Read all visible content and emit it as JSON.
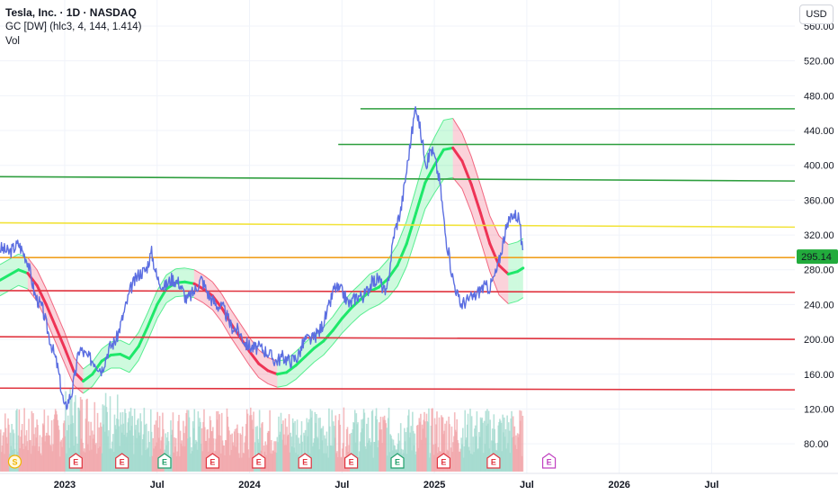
{
  "legend": {
    "title": "Tesla, Inc. · 1D · NASDAQ",
    "indicator": "GC [DW] (hlc3, 4, 144, 1.414)",
    "volume": "Vol"
  },
  "currency_button": "USD",
  "colors": {
    "price": "#5b6ee1",
    "price_top": "#7b4fd6",
    "green_level": "#2e9e3e",
    "yellow_level": "#f2e33a",
    "orange_level": "#f0a020",
    "red_level": "#e0333e",
    "band_green": "#1ee86a",
    "band_red": "#ee3355",
    "vol_up": "#9fd8cc",
    "vol_down": "#f0a4a8",
    "price_label_bg": "#22ab3c"
  },
  "chart_data": {
    "type": "line",
    "y_axis": {
      "ticks": [
        "560.00",
        "520.00",
        "480.00",
        "440.00",
        "400.00",
        "360.00",
        "320.00",
        "280.00",
        "240.00",
        "200.00",
        "160.00",
        "120.00",
        "80.00"
      ],
      "range": [
        46,
        590
      ]
    },
    "x_axis": {
      "ticks": [
        {
          "label": "2023",
          "t": 0.0
        },
        {
          "label": "Jul",
          "t": 0.5
        },
        {
          "label": "2024",
          "t": 1.0
        },
        {
          "label": "Jul",
          "t": 1.5
        },
        {
          "label": "2025",
          "t": 2.0
        },
        {
          "label": "Jul",
          "t": 2.5
        },
        {
          "label": "2026",
          "t": 3.0
        },
        {
          "label": "Jul",
          "t": 3.5
        }
      ],
      "range": [
        -0.35,
        3.95
      ]
    },
    "current_price": "295.14",
    "current_value": 295.14,
    "horizontal_levels": [
      {
        "value": 465,
        "start": 1.6,
        "color": "green"
      },
      {
        "value": 424,
        "start": 1.48,
        "color": "green"
      },
      {
        "value": 387,
        "start": -0.35,
        "end_value": 382,
        "color": "green"
      },
      {
        "value": 334,
        "start": -0.35,
        "end_value": 329,
        "color": "yellow"
      },
      {
        "value": 294,
        "start": -0.35,
        "color": "orange"
      },
      {
        "value": 256,
        "start": -0.35,
        "end_value": 254,
        "color": "red"
      },
      {
        "value": 203,
        "start": -0.35,
        "end_value": 200,
        "color": "red"
      },
      {
        "value": 144,
        "start": -0.35,
        "end_value": 142,
        "color": "red"
      }
    ],
    "price_series": {
      "t": [
        -0.35,
        -0.3,
        -0.25,
        -0.2,
        -0.16,
        -0.12,
        -0.08,
        -0.04,
        0.0,
        0.04,
        0.08,
        0.12,
        0.16,
        0.2,
        0.24,
        0.28,
        0.32,
        0.36,
        0.4,
        0.44,
        0.47,
        0.5,
        0.54,
        0.58,
        0.62,
        0.66,
        0.7,
        0.74,
        0.78,
        0.82,
        0.86,
        0.9,
        0.94,
        0.98,
        1.02,
        1.06,
        1.1,
        1.14,
        1.18,
        1.22,
        1.26,
        1.3,
        1.34,
        1.38,
        1.42,
        1.46,
        1.5,
        1.54,
        1.58,
        1.62,
        1.66,
        1.7,
        1.74,
        1.78,
        1.82,
        1.86,
        1.9,
        1.94,
        1.96,
        1.98,
        2.0,
        2.03,
        2.06,
        2.1,
        2.14,
        2.18,
        2.22,
        2.26,
        2.3,
        2.34,
        2.38,
        2.42,
        2.46,
        2.48
      ],
      "values": [
        305,
        300,
        310,
        290,
        250,
        235,
        200,
        170,
        120,
        140,
        190,
        180,
        175,
        165,
        190,
        200,
        230,
        260,
        275,
        280,
        300,
        270,
        260,
        270,
        265,
        245,
        255,
        270,
        250,
        240,
        235,
        215,
        210,
        195,
        190,
        190,
        185,
        175,
        180,
        175,
        180,
        200,
        200,
        210,
        230,
        260,
        255,
        240,
        250,
        250,
        265,
        270,
        250,
        320,
        350,
        410,
        470,
        420,
        400,
        420,
        410,
        380,
        320,
        270,
        240,
        245,
        250,
        260,
        260,
        280,
        320,
        345,
        340,
        290
      ]
    },
    "band_center": {
      "t": [
        -0.35,
        -0.25,
        -0.2,
        -0.15,
        -0.1,
        -0.05,
        0.0,
        0.05,
        0.1,
        0.15,
        0.2,
        0.25,
        0.3,
        0.35,
        0.4,
        0.45,
        0.5,
        0.55,
        0.6,
        0.65,
        0.7,
        0.75,
        0.8,
        0.85,
        0.9,
        0.95,
        1.0,
        1.05,
        1.1,
        1.15,
        1.2,
        1.25,
        1.3,
        1.35,
        1.4,
        1.45,
        1.5,
        1.55,
        1.6,
        1.65,
        1.7,
        1.75,
        1.8,
        1.85,
        1.9,
        1.95,
        2.0,
        2.05,
        2.1,
        2.15,
        2.2,
        2.25,
        2.3,
        2.35,
        2.4,
        2.45,
        2.48
      ],
      "values": [
        268,
        280,
        276,
        262,
        240,
        215,
        190,
        163,
        152,
        160,
        175,
        182,
        183,
        178,
        192,
        215,
        240,
        258,
        265,
        266,
        264,
        258,
        250,
        236,
        218,
        202,
        186,
        172,
        164,
        160,
        162,
        170,
        180,
        190,
        198,
        210,
        224,
        236,
        246,
        255,
        260,
        270,
        285,
        310,
        345,
        380,
        400,
        418,
        420,
        405,
        378,
        345,
        310,
        285,
        275,
        278,
        282
      ],
      "width": [
        18,
        18,
        18,
        18,
        18,
        18,
        18,
        16,
        14,
        14,
        14,
        15,
        16,
        16,
        16,
        16,
        16,
        16,
        16,
        16,
        16,
        16,
        16,
        16,
        16,
        16,
        16,
        16,
        15,
        15,
        15,
        16,
        16,
        16,
        16,
        16,
        17,
        18,
        18,
        20,
        20,
        22,
        24,
        26,
        28,
        30,
        32,
        34,
        34,
        32,
        32,
        32,
        32,
        34,
        34,
        34,
        34
      ],
      "direction": [
        1,
        1,
        0,
        0,
        0,
        0,
        0,
        0,
        1,
        1,
        1,
        1,
        1,
        1,
        1,
        1,
        1,
        1,
        1,
        1,
        0,
        0,
        0,
        0,
        0,
        0,
        0,
        0,
        0,
        1,
        1,
        1,
        1,
        1,
        1,
        1,
        1,
        1,
        1,
        1,
        1,
        1,
        1,
        1,
        1,
        1,
        1,
        1,
        0,
        0,
        0,
        0,
        0,
        0,
        1,
        1,
        1
      ]
    },
    "volume_max": 185,
    "event_markers": [
      {
        "label": "S",
        "t": -0.27,
        "kind": "split"
      },
      {
        "label": "E",
        "t": 0.06,
        "kind": "earn-red"
      },
      {
        "label": "E",
        "t": 0.31,
        "kind": "earn-red"
      },
      {
        "label": "E",
        "t": 0.54,
        "kind": "earn-green"
      },
      {
        "label": "E",
        "t": 0.8,
        "kind": "earn-red"
      },
      {
        "label": "E",
        "t": 1.05,
        "kind": "earn-red"
      },
      {
        "label": "E",
        "t": 1.3,
        "kind": "earn-red"
      },
      {
        "label": "E",
        "t": 1.55,
        "kind": "earn-red"
      },
      {
        "label": "E",
        "t": 1.8,
        "kind": "earn-green"
      },
      {
        "label": "E",
        "t": 2.05,
        "kind": "earn-red"
      },
      {
        "label": "E",
        "t": 2.32,
        "kind": "earn-red"
      },
      {
        "label": "E",
        "t": 2.62,
        "kind": "earn-future"
      }
    ]
  }
}
